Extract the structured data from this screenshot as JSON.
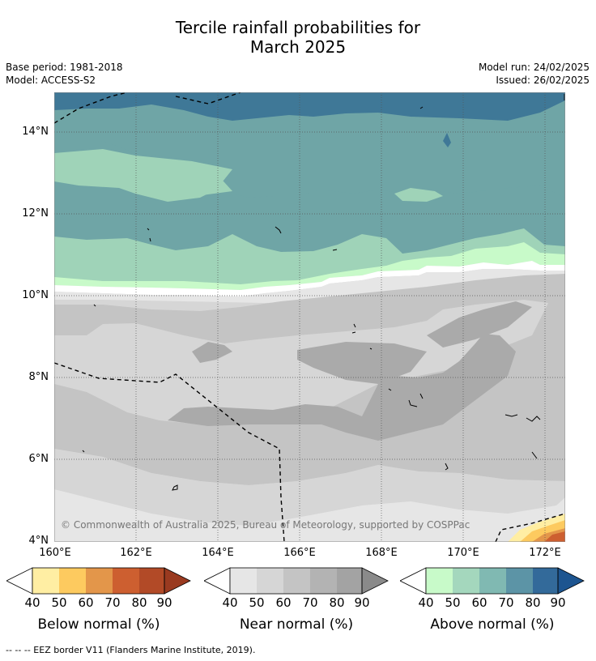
{
  "title_line1": "Tercile rainfall probabilities for",
  "title_line2": "March 2025",
  "base_period": "Base period: 1981-2018",
  "model": "Model: ACCESS-S2",
  "model_run": "Model run: 24/02/2025",
  "issued": "Issued: 26/02/2025",
  "lat_labels": [
    "14°N",
    "12°N",
    "10°N",
    "8°N",
    "6°N",
    "4°N"
  ],
  "lon_labels": [
    "160°E",
    "162°E",
    "164°E",
    "166°E",
    "168°E",
    "170°E",
    "172°E"
  ],
  "copyright": "© Commonwealth of Australia 2025, Bureau of Meteorology, supported by COSPPac",
  "colorbars": [
    {
      "label": "Below normal (%)",
      "ticks": [
        "40",
        "50",
        "60",
        "70",
        "80",
        "90"
      ],
      "colors": [
        "#ffeea3",
        "#fdca5f",
        "#e3964a",
        "#cd5f30",
        "#b24a27"
      ],
      "end_color": "#9a3a20"
    },
    {
      "label": "Near normal (%)",
      "ticks": [
        "40",
        "50",
        "60",
        "70",
        "80",
        "90"
      ],
      "colors": [
        "#e6e6e6",
        "#d6d6d6",
        "#c4c4c4",
        "#b3b3b3",
        "#a3a3a3"
      ],
      "end_color": "#8a8a8a"
    },
    {
      "label": "Above normal (%)",
      "ticks": [
        "40",
        "50",
        "60",
        "70",
        "80",
        "90"
      ],
      "colors": [
        "#c8fac9",
        "#a4d7bd",
        "#80b9b2",
        "#5c94a6",
        "#336a9a"
      ],
      "end_color": "#1d5590"
    }
  ],
  "footer": "--  --  -- EEZ border V11 (Flanders Marine Institute, 2019).",
  "colors": {
    "above_70": "#6fa5a6",
    "above_80": "#3f7897",
    "above_60": "#9fd3b8",
    "above_50": "#c8fac9",
    "near_40": "#e6e6e6",
    "near_50": "#d6d6d6",
    "near_60": "#c4c4c4",
    "near_70": "#aaaaaa"
  }
}
